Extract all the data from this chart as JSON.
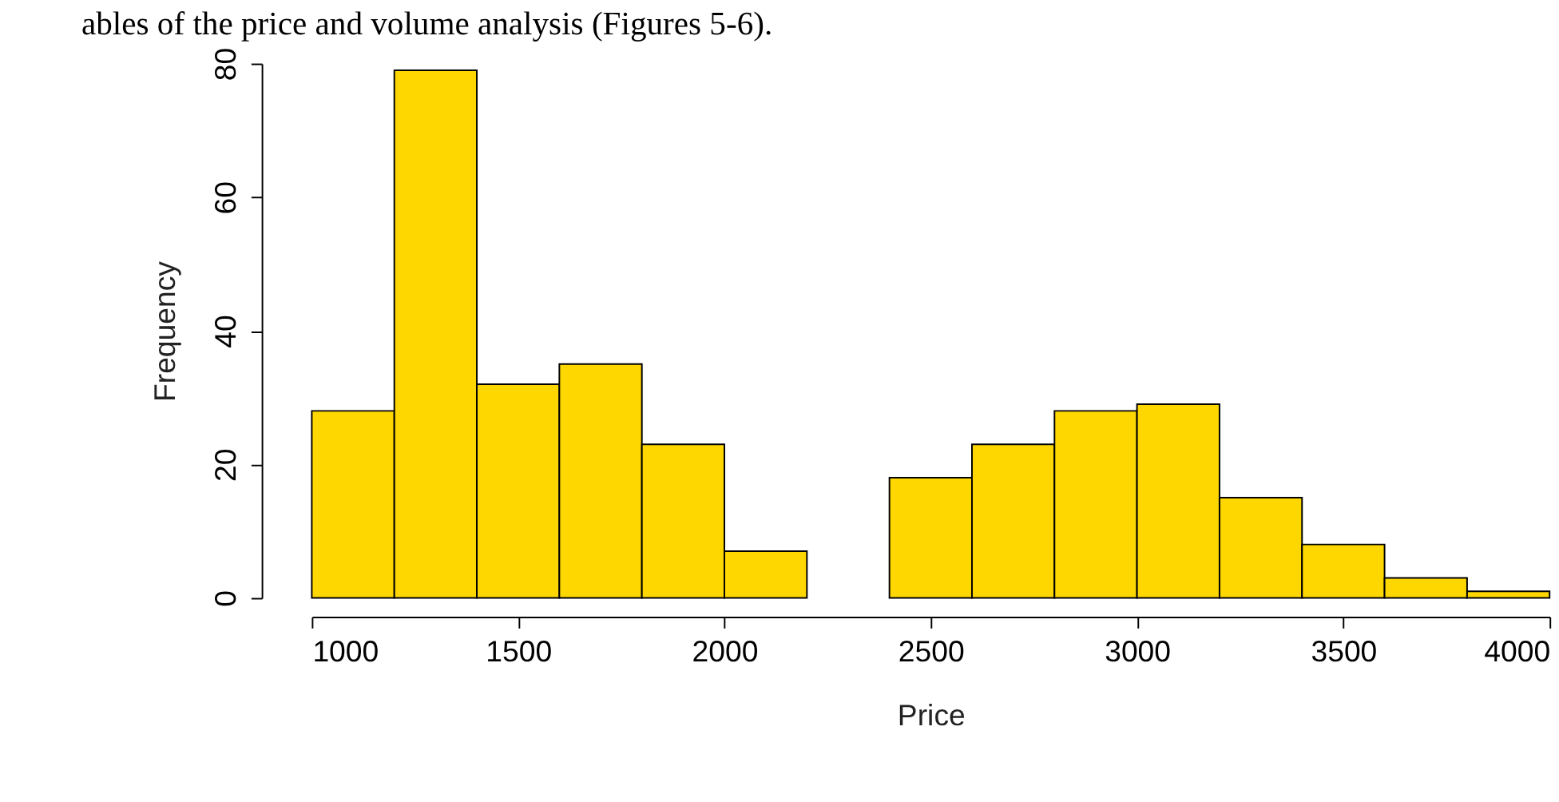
{
  "chart_data": {
    "type": "histogram",
    "xlabel": "Price",
    "ylabel": "Frequency",
    "annotations": [
      "ables of the price and volume analysis (Figures 5-6)."
    ],
    "bins": [
      1000,
      1200,
      1400,
      1600,
      1800,
      2000,
      2200,
      2400,
      2600,
      2800,
      3000,
      3200,
      3400,
      3600,
      3800,
      4000
    ],
    "values": [
      28,
      79,
      32,
      35,
      23,
      7,
      0,
      18,
      23,
      28,
      29,
      15,
      8,
      3,
      1
    ],
    "color": "#ffd700",
    "xlim": [
      1000,
      4000
    ],
    "xticks": [
      1000,
      1500,
      2000,
      2500,
      3000,
      3500,
      4000
    ],
    "ylim": [
      0,
      80
    ],
    "yticks": [
      0,
      20,
      40,
      60,
      80
    ],
    "grid": false
  }
}
